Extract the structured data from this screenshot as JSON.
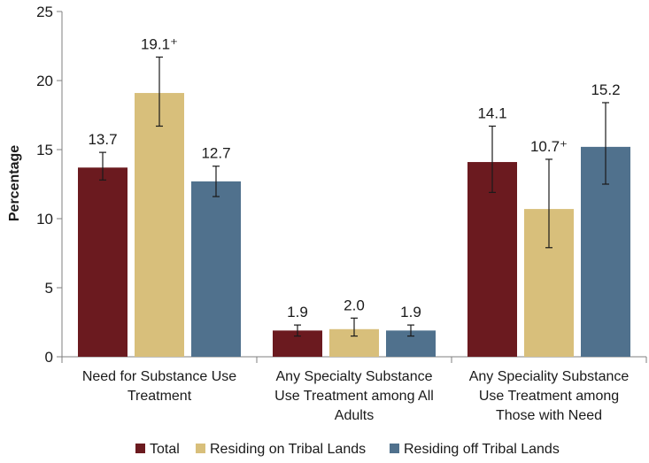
{
  "chart_data": {
    "type": "bar",
    "title": "",
    "xlabel": "",
    "ylabel": "Percentage",
    "ylim": [
      0,
      25
    ],
    "yticks": [
      0,
      5,
      10,
      15,
      20,
      25
    ],
    "categories": [
      [
        "Need for Substance Use",
        "Treatment"
      ],
      [
        "Any Specialty Substance",
        "Use Treatment among All",
        "Adults"
      ],
      [
        "Any Speciality Substance",
        "Use Treatment among",
        "Those with Need"
      ]
    ],
    "series": [
      {
        "name": "Total",
        "color": "#6b1a1f",
        "values": [
          13.7,
          1.9,
          14.1
        ],
        "labels": [
          "13.7",
          "1.9",
          "14.1"
        ],
        "error_low": [
          12.8,
          1.5,
          11.9
        ],
        "error_high": [
          14.8,
          2.3,
          16.7
        ]
      },
      {
        "name": "Residing on Tribal Lands",
        "color": "#d8bf7b",
        "values": [
          19.1,
          2.0,
          10.7
        ],
        "labels": [
          "19.1⁺",
          "2.0",
          "10.7⁺"
        ],
        "error_low": [
          16.7,
          1.5,
          7.9
        ],
        "error_high": [
          21.7,
          2.8,
          14.3
        ]
      },
      {
        "name": "Residing off Tribal Lands",
        "color": "#50718d",
        "values": [
          12.7,
          1.9,
          15.2
        ],
        "labels": [
          "12.7",
          "1.9",
          "15.2"
        ],
        "error_low": [
          11.6,
          1.5,
          12.5
        ],
        "error_high": [
          13.8,
          2.3,
          18.4
        ]
      }
    ],
    "legend_position": "bottom",
    "grid": false
  }
}
